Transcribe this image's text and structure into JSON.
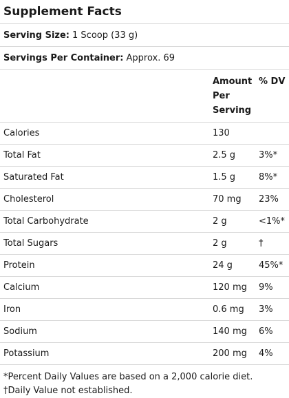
{
  "title": "Supplement Facts",
  "serving_size": {
    "label": "Serving Size:",
    "value": "1 Scoop (33 g)"
  },
  "servings_per_container": {
    "label": "Servings Per Container:",
    "value": "Approx. 69"
  },
  "table": {
    "headers": {
      "name": "",
      "amount": "Amount Per Serving",
      "dv": "% DV"
    },
    "rows": [
      {
        "name": "Calories",
        "amount": "130",
        "dv": ""
      },
      {
        "name": "Total Fat",
        "amount": "2.5 g",
        "dv": "3%*"
      },
      {
        "name": "Saturated Fat",
        "amount": "1.5 g",
        "dv": "8%*"
      },
      {
        "name": "Cholesterol",
        "amount": "70 mg",
        "dv": "23%"
      },
      {
        "name": "Total Carbohydrate",
        "amount": "2 g",
        "dv": "<1%*"
      },
      {
        "name": "Total Sugars",
        "amount": "2 g",
        "dv": "†"
      },
      {
        "name": "Protein",
        "amount": "24 g",
        "dv": "45%*"
      },
      {
        "name": "Calcium",
        "amount": "120 mg",
        "dv": "9%"
      },
      {
        "name": "Iron",
        "amount": "0.6 mg",
        "dv": "3%"
      },
      {
        "name": "Sodium",
        "amount": "140 mg",
        "dv": "6%"
      },
      {
        "name": "Potassium",
        "amount": "200 mg",
        "dv": "4%"
      }
    ]
  },
  "footnotes": [
    "*Percent Daily Values are based on a 2,000 calorie diet.",
    "†Daily Value not established."
  ]
}
